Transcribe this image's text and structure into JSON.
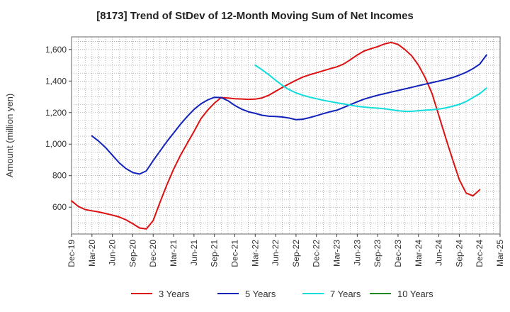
{
  "chart_data": {
    "type": "line",
    "title": "[8173]  Trend of StDev of 12-Month Moving Sum of Net Incomes",
    "xlabel": "",
    "ylabel": "Amount (million yen)",
    "x_ticks": [
      "Dec-19",
      "Mar-20",
      "Jun-20",
      "Sep-20",
      "Dec-20",
      "Mar-21",
      "Jun-21",
      "Sep-21",
      "Dec-21",
      "Mar-22",
      "Jun-22",
      "Sep-22",
      "Dec-22",
      "Mar-23",
      "Jun-23",
      "Sep-23",
      "Dec-23",
      "Mar-24",
      "Jun-24",
      "Sep-24",
      "Dec-24",
      "Mar-25"
    ],
    "y_ticks": [
      "600",
      "800",
      "1,000",
      "1,200",
      "1,400",
      "1,600"
    ],
    "ylim": [
      430,
      1680
    ],
    "xlim_months": [
      "Dec-19",
      "Mar-25"
    ],
    "grid": true,
    "legend_position": "bottom",
    "series": [
      {
        "name": "3 Years",
        "color": "#dd1111",
        "points": [
          [
            "Dec-19",
            640
          ],
          [
            "Jan-20",
            605
          ],
          [
            "Feb-20",
            585
          ],
          [
            "Mar-20",
            577
          ],
          [
            "Apr-20",
            570
          ],
          [
            "May-20",
            560
          ],
          [
            "Jun-20",
            550
          ],
          [
            "Jul-20",
            538
          ],
          [
            "Aug-20",
            520
          ],
          [
            "Sep-20",
            495
          ],
          [
            "Oct-20",
            468
          ],
          [
            "Nov-20",
            462
          ],
          [
            "Dec-20",
            515
          ],
          [
            "Jan-21",
            630
          ],
          [
            "Feb-21",
            740
          ],
          [
            "Mar-21",
            840
          ],
          [
            "Apr-21",
            928
          ],
          [
            "May-21",
            1005
          ],
          [
            "Jun-21",
            1080
          ],
          [
            "Jul-21",
            1160
          ],
          [
            "Aug-21",
            1215
          ],
          [
            "Sep-21",
            1260
          ],
          [
            "Oct-21",
            1295
          ],
          [
            "Nov-21",
            1292
          ],
          [
            "Dec-21",
            1288
          ],
          [
            "Jan-22",
            1286
          ],
          [
            "Feb-22",
            1284
          ],
          [
            "Mar-22",
            1285
          ],
          [
            "Apr-22",
            1293
          ],
          [
            "May-22",
            1310
          ],
          [
            "Jun-22",
            1335
          ],
          [
            "Jul-22",
            1360
          ],
          [
            "Aug-22",
            1383
          ],
          [
            "Sep-22",
            1405
          ],
          [
            "Oct-22",
            1425
          ],
          [
            "Nov-22",
            1440
          ],
          [
            "Dec-22",
            1452
          ],
          [
            "Jan-23",
            1465
          ],
          [
            "Feb-23",
            1478
          ],
          [
            "Mar-23",
            1490
          ],
          [
            "Apr-23",
            1508
          ],
          [
            "May-23",
            1535
          ],
          [
            "Jun-23",
            1565
          ],
          [
            "Jul-23",
            1590
          ],
          [
            "Aug-23",
            1605
          ],
          [
            "Sep-23",
            1618
          ],
          [
            "Oct-23",
            1635
          ],
          [
            "Nov-23",
            1645
          ],
          [
            "Dec-23",
            1632
          ],
          [
            "Jan-24",
            1600
          ],
          [
            "Feb-24",
            1560
          ],
          [
            "Mar-24",
            1500
          ],
          [
            "Apr-24",
            1420
          ],
          [
            "May-24",
            1320
          ],
          [
            "Jun-24",
            1180
          ],
          [
            "Jul-24",
            1040
          ],
          [
            "Aug-24",
            905
          ],
          [
            "Sep-24",
            775
          ],
          [
            "Oct-24",
            690
          ],
          [
            "Nov-24",
            672
          ],
          [
            "Dec-24",
            710
          ]
        ]
      },
      {
        "name": "5 Years",
        "color": "#1122bb",
        "points": [
          [
            "Mar-20",
            1052
          ],
          [
            "Apr-20",
            1018
          ],
          [
            "May-20",
            978
          ],
          [
            "Jun-20",
            930
          ],
          [
            "Jul-20",
            882
          ],
          [
            "Aug-20",
            845
          ],
          [
            "Sep-20",
            820
          ],
          [
            "Oct-20",
            810
          ],
          [
            "Nov-20",
            830
          ],
          [
            "Dec-20",
            895
          ],
          [
            "Jan-21",
            955
          ],
          [
            "Feb-21",
            1015
          ],
          [
            "Mar-21",
            1070
          ],
          [
            "Apr-21",
            1125
          ],
          [
            "May-21",
            1175
          ],
          [
            "Jun-21",
            1220
          ],
          [
            "Jul-21",
            1255
          ],
          [
            "Aug-21",
            1280
          ],
          [
            "Sep-21",
            1297
          ],
          [
            "Oct-21",
            1295
          ],
          [
            "Nov-21",
            1275
          ],
          [
            "Dec-21",
            1245
          ],
          [
            "Jan-22",
            1222
          ],
          [
            "Feb-22",
            1205
          ],
          [
            "Mar-22",
            1195
          ],
          [
            "Apr-22",
            1183
          ],
          [
            "May-22",
            1177
          ],
          [
            "Jun-22",
            1175
          ],
          [
            "Jul-22",
            1172
          ],
          [
            "Aug-22",
            1165
          ],
          [
            "Sep-22",
            1155
          ],
          [
            "Oct-22",
            1158
          ],
          [
            "Nov-22",
            1168
          ],
          [
            "Dec-22",
            1180
          ],
          [
            "Jan-23",
            1193
          ],
          [
            "Feb-23",
            1205
          ],
          [
            "Mar-23",
            1215
          ],
          [
            "Apr-23",
            1232
          ],
          [
            "May-23",
            1250
          ],
          [
            "Jun-23",
            1268
          ],
          [
            "Jul-23",
            1285
          ],
          [
            "Aug-23",
            1298
          ],
          [
            "Sep-23",
            1310
          ],
          [
            "Oct-23",
            1320
          ],
          [
            "Nov-23",
            1330
          ],
          [
            "Dec-23",
            1340
          ],
          [
            "Jan-24",
            1350
          ],
          [
            "Feb-24",
            1360
          ],
          [
            "Mar-24",
            1370
          ],
          [
            "Apr-24",
            1380
          ],
          [
            "May-24",
            1390
          ],
          [
            "Jun-24",
            1400
          ],
          [
            "Jul-24",
            1410
          ],
          [
            "Aug-24",
            1422
          ],
          [
            "Sep-24",
            1437
          ],
          [
            "Oct-24",
            1455
          ],
          [
            "Nov-24",
            1478
          ],
          [
            "Dec-24",
            1507
          ],
          [
            "Jan-25",
            1565
          ]
        ]
      },
      {
        "name": "7 Years",
        "color": "#11dddd",
        "points": [
          [
            "Mar-22",
            1500
          ],
          [
            "Apr-22",
            1472
          ],
          [
            "May-22",
            1440
          ],
          [
            "Jun-22",
            1405
          ],
          [
            "Jul-22",
            1372
          ],
          [
            "Aug-22",
            1345
          ],
          [
            "Sep-22",
            1325
          ],
          [
            "Oct-22",
            1310
          ],
          [
            "Nov-22",
            1298
          ],
          [
            "Dec-22",
            1288
          ],
          [
            "Jan-23",
            1278
          ],
          [
            "Feb-23",
            1270
          ],
          [
            "Mar-23",
            1262
          ],
          [
            "Apr-23",
            1255
          ],
          [
            "May-23",
            1247
          ],
          [
            "Jun-23",
            1240
          ],
          [
            "Jul-23",
            1235
          ],
          [
            "Aug-23",
            1231
          ],
          [
            "Sep-23",
            1228
          ],
          [
            "Oct-23",
            1224
          ],
          [
            "Nov-23",
            1218
          ],
          [
            "Dec-23",
            1212
          ],
          [
            "Jan-24",
            1208
          ],
          [
            "Feb-24",
            1208
          ],
          [
            "Mar-24",
            1212
          ],
          [
            "Apr-24",
            1215
          ],
          [
            "May-24",
            1218
          ],
          [
            "Jun-24",
            1222
          ],
          [
            "Jul-24",
            1230
          ],
          [
            "Aug-24",
            1240
          ],
          [
            "Sep-24",
            1252
          ],
          [
            "Oct-24",
            1270
          ],
          [
            "Nov-24",
            1295
          ],
          [
            "Dec-24",
            1320
          ],
          [
            "Jan-25",
            1355
          ]
        ]
      },
      {
        "name": "10 Years",
        "color": "#228822",
        "points": []
      }
    ]
  }
}
